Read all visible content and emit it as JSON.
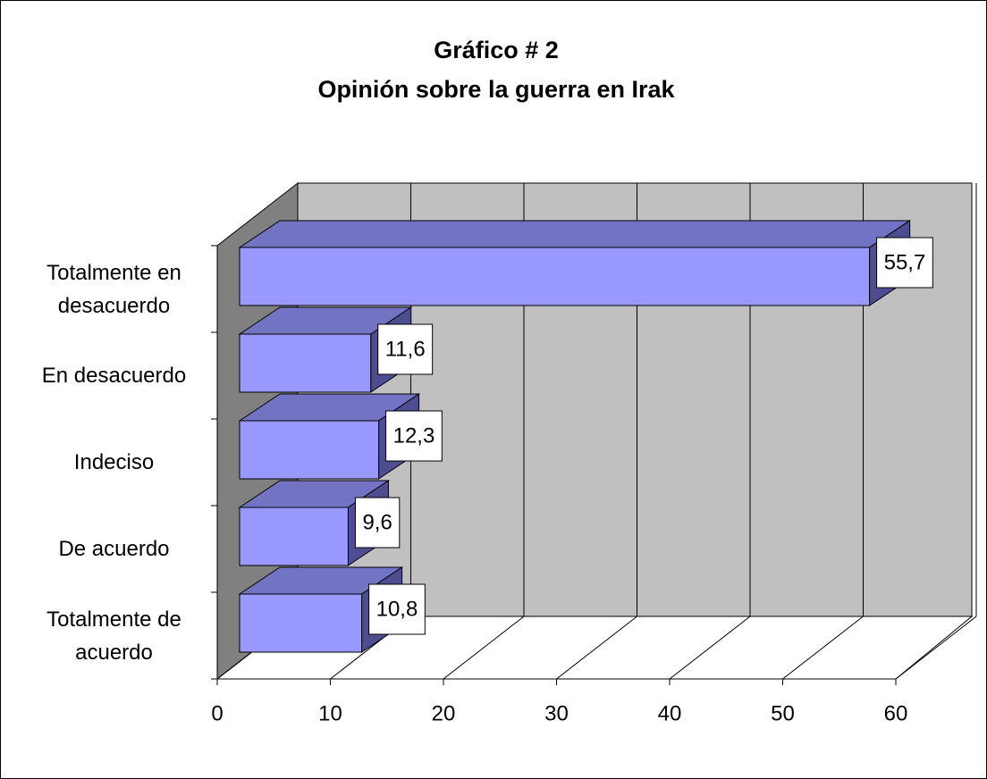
{
  "chart_data": {
    "type": "bar3d_horizontal",
    "title": "Gráfico # 2",
    "subtitle": "Opinión sobre la guerra en Irak",
    "categories": [
      "Totalmente en desacuerdo",
      "En desacuerdo",
      "Indeciso",
      "De acuerdo",
      "Totalmente de acuerdo"
    ],
    "values": [
      55.7,
      11.6,
      12.3,
      9.6,
      10.8
    ],
    "value_labels": [
      "55,7",
      "11,6",
      "12,3",
      "9,6",
      "10,8"
    ],
    "color": "#9999ff",
    "xlim": [
      0,
      60
    ],
    "xticks": [
      0,
      10,
      20,
      30,
      40,
      50,
      60
    ],
    "grid": true
  }
}
